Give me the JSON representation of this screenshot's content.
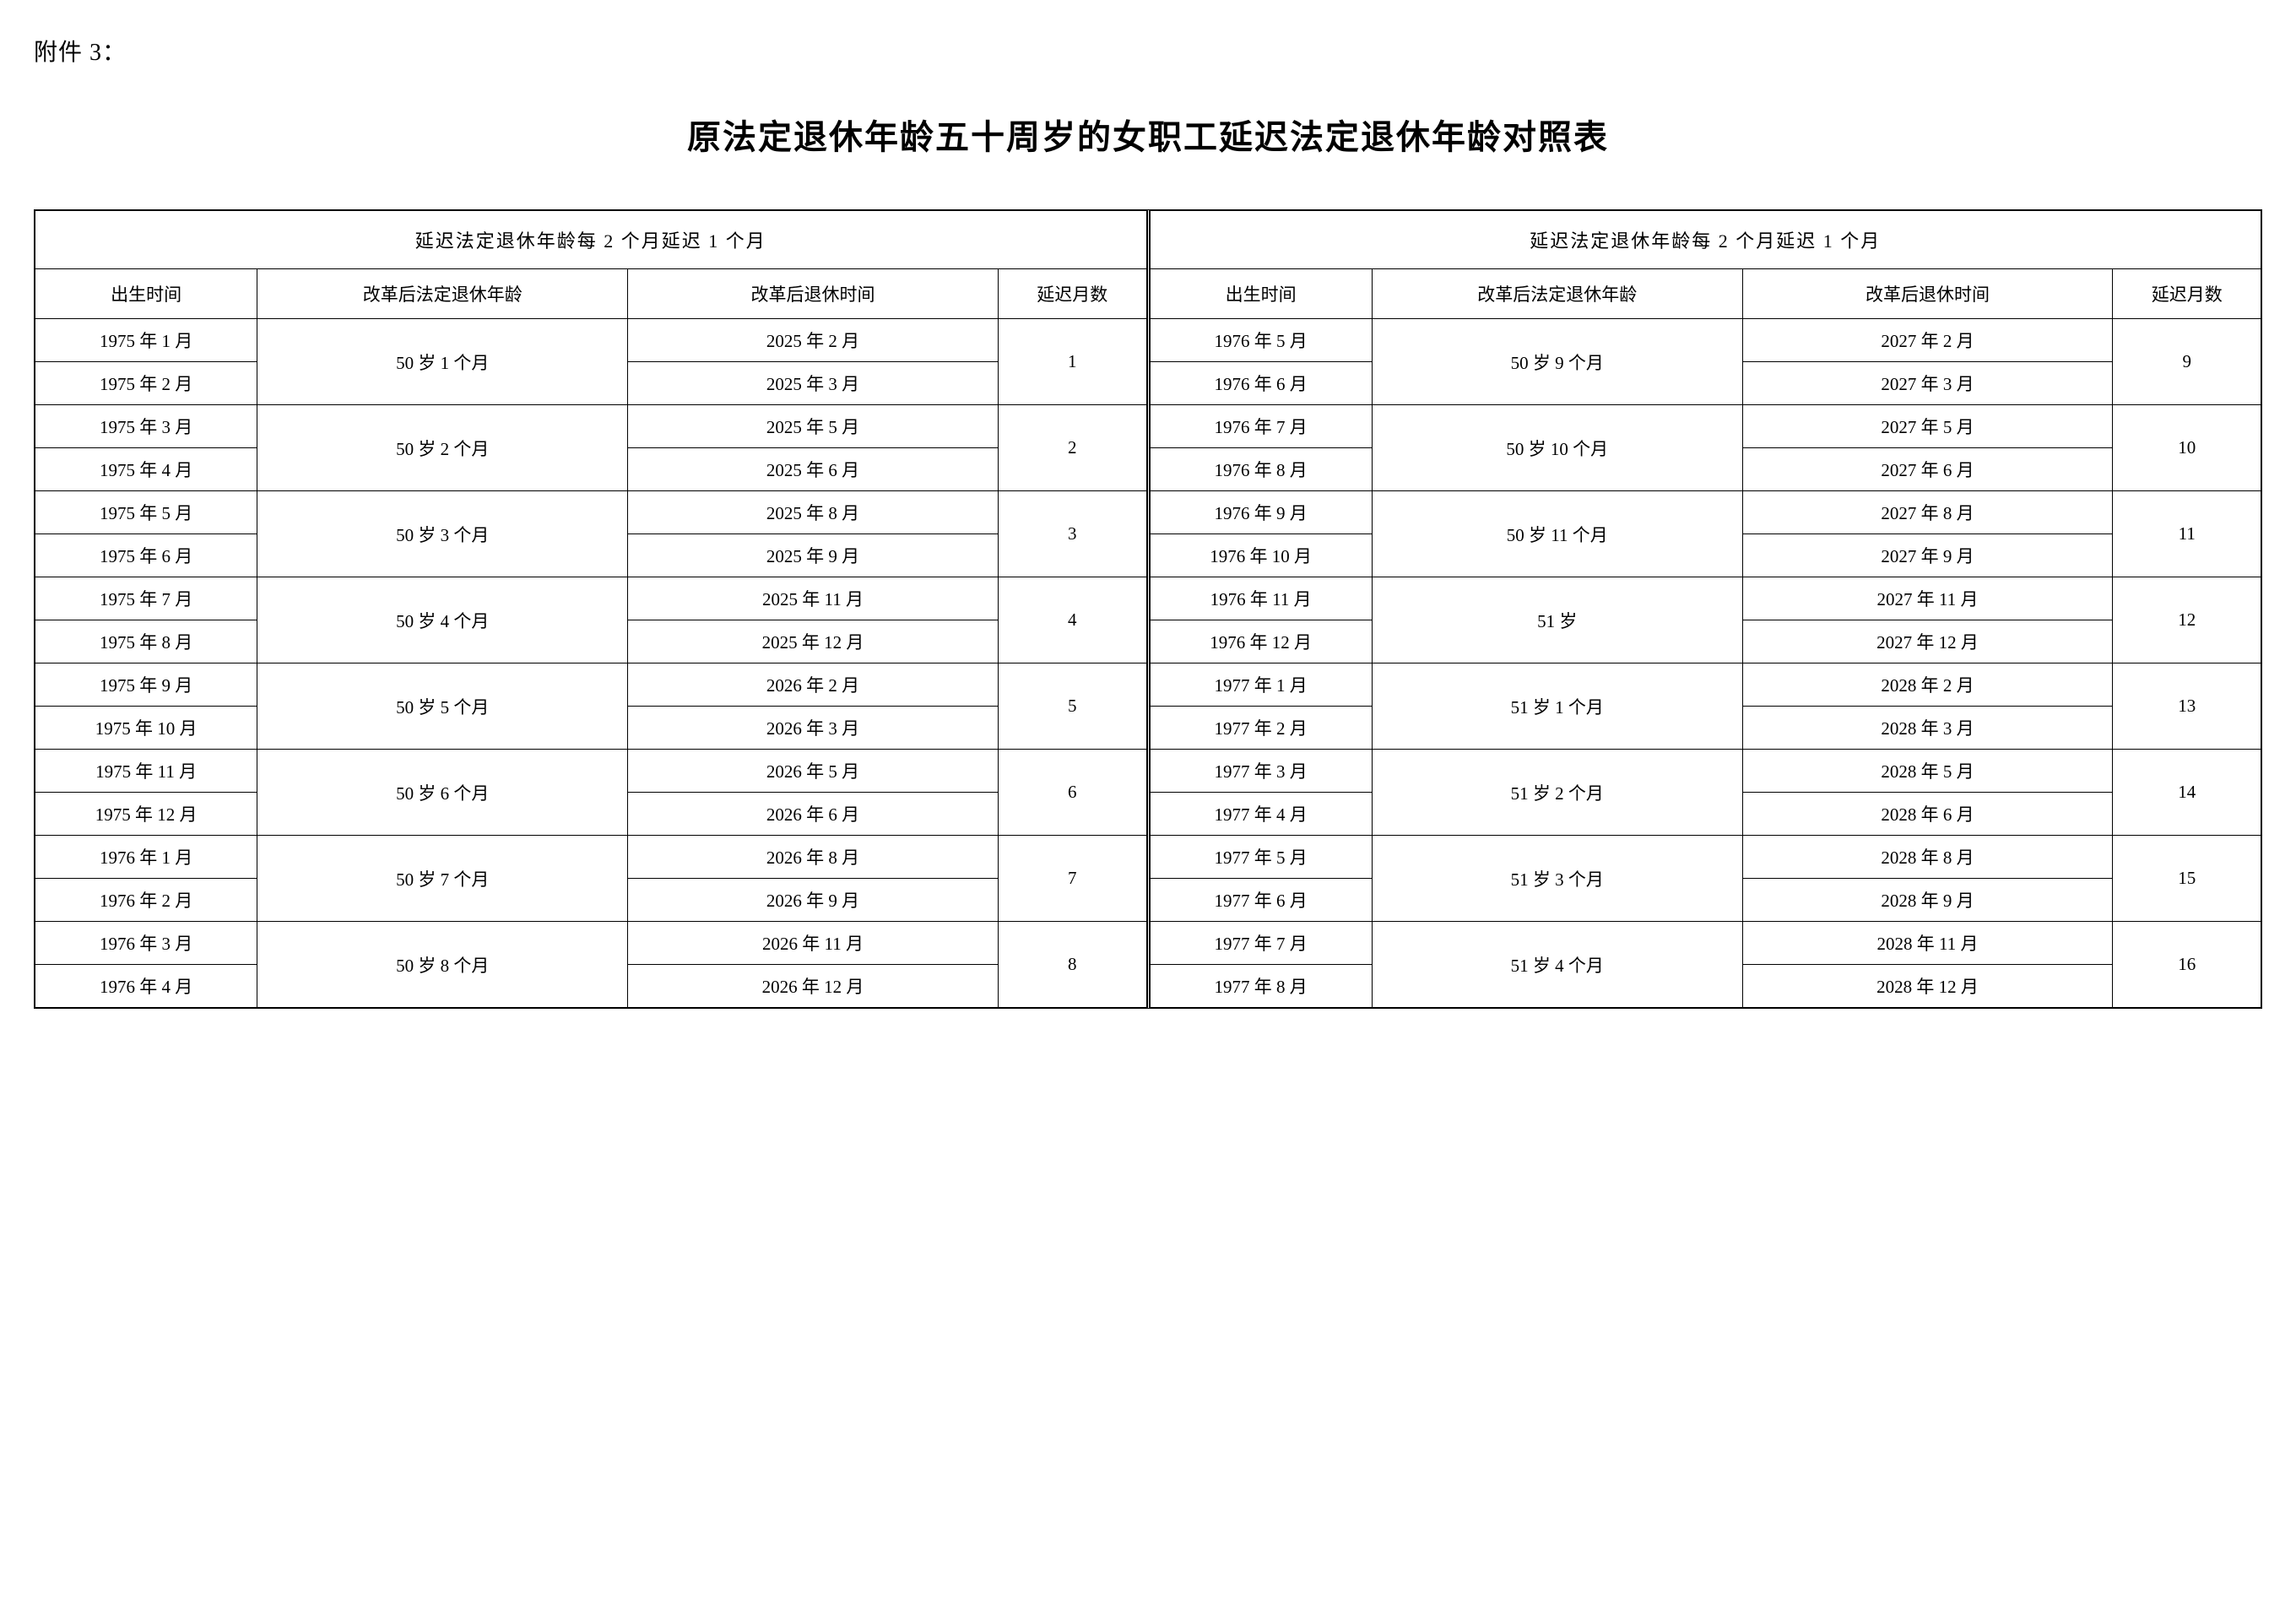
{
  "attachment_label": "附件 3：",
  "title": "原法定退休年龄五十周岁的女职工延迟法定退休年龄对照表",
  "group_header": "延迟法定退休年龄每 2 个月延迟 1 个月",
  "columns": {
    "birth": "出生时间",
    "age": "改革后法定退休年龄",
    "retire": "改革后退休时间",
    "delay": "延迟月数"
  },
  "left": [
    {
      "births": [
        "1975 年 1 月",
        "1975 年 2 月"
      ],
      "age": "50 岁 1 个月",
      "retires": [
        "2025 年 2 月",
        "2025 年 3 月"
      ],
      "delay": "1"
    },
    {
      "births": [
        "1975 年 3 月",
        "1975 年 4 月"
      ],
      "age": "50 岁 2 个月",
      "retires": [
        "2025 年 5 月",
        "2025 年 6 月"
      ],
      "delay": "2"
    },
    {
      "births": [
        "1975 年 5 月",
        "1975 年 6 月"
      ],
      "age": "50 岁 3 个月",
      "retires": [
        "2025 年 8 月",
        "2025 年 9 月"
      ],
      "delay": "3"
    },
    {
      "births": [
        "1975 年 7 月",
        "1975 年 8 月"
      ],
      "age": "50 岁 4 个月",
      "retires": [
        "2025 年 11 月",
        "2025 年 12 月"
      ],
      "delay": "4"
    },
    {
      "births": [
        "1975 年 9 月",
        "1975 年 10 月"
      ],
      "age": "50 岁 5 个月",
      "retires": [
        "2026 年 2 月",
        "2026 年 3 月"
      ],
      "delay": "5"
    },
    {
      "births": [
        "1975 年 11 月",
        "1975 年 12 月"
      ],
      "age": "50 岁 6 个月",
      "retires": [
        "2026 年 5 月",
        "2026 年 6 月"
      ],
      "delay": "6"
    },
    {
      "births": [
        "1976 年 1 月",
        "1976 年 2 月"
      ],
      "age": "50 岁 7 个月",
      "retires": [
        "2026 年 8 月",
        "2026 年 9 月"
      ],
      "delay": "7"
    },
    {
      "births": [
        "1976 年 3 月",
        "1976 年 4 月"
      ],
      "age": "50 岁 8 个月",
      "retires": [
        "2026 年 11 月",
        "2026 年 12 月"
      ],
      "delay": "8"
    }
  ],
  "right": [
    {
      "births": [
        "1976 年 5 月",
        "1976 年 6 月"
      ],
      "age": "50 岁 9 个月",
      "retires": [
        "2027 年 2 月",
        "2027 年 3 月"
      ],
      "delay": "9"
    },
    {
      "births": [
        "1976 年 7 月",
        "1976 年 8 月"
      ],
      "age": "50 岁 10 个月",
      "retires": [
        "2027 年 5 月",
        "2027 年 6 月"
      ],
      "delay": "10"
    },
    {
      "births": [
        "1976 年 9 月",
        "1976 年 10 月"
      ],
      "age": "50 岁 11 个月",
      "retires": [
        "2027 年 8 月",
        "2027 年 9 月"
      ],
      "delay": "11"
    },
    {
      "births": [
        "1976 年 11 月",
        "1976 年 12 月"
      ],
      "age": "51 岁",
      "retires": [
        "2027 年 11 月",
        "2027 年 12 月"
      ],
      "delay": "12"
    },
    {
      "births": [
        "1977 年 1 月",
        "1977 年 2 月"
      ],
      "age": "51 岁 1 个月",
      "retires": [
        "2028 年 2 月",
        "2028 年 3 月"
      ],
      "delay": "13"
    },
    {
      "births": [
        "1977 年 3 月",
        "1977 年 4 月"
      ],
      "age": "51 岁 2 个月",
      "retires": [
        "2028 年 5 月",
        "2028 年 6 月"
      ],
      "delay": "14"
    },
    {
      "births": [
        "1977 年 5 月",
        "1977 年 6 月"
      ],
      "age": "51 岁 3 个月",
      "retires": [
        "2028 年 8 月",
        "2028 年 9 月"
      ],
      "delay": "15"
    },
    {
      "births": [
        "1977 年 7 月",
        "1977 年 8 月"
      ],
      "age": "51 岁 4 个月",
      "retires": [
        "2028 年 11 月",
        "2028 年 12 月"
      ],
      "delay": "16"
    }
  ]
}
